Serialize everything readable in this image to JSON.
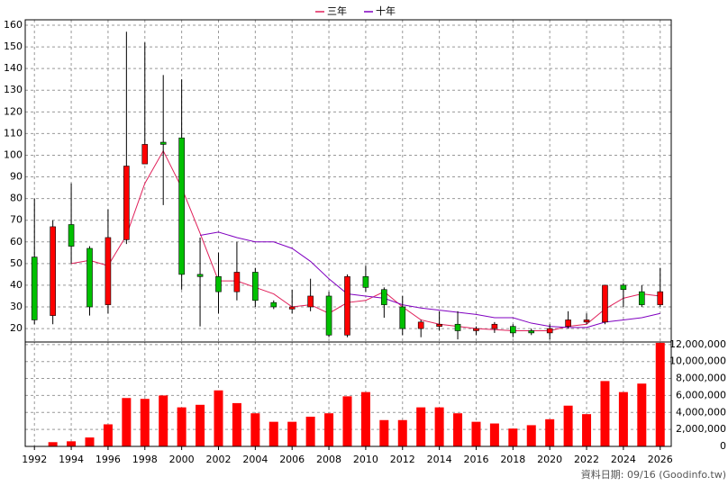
{
  "chart_data": [
    {
      "type": "candlestick",
      "legend": "top",
      "x": [
        1992,
        1993,
        1994,
        1995,
        1996,
        1997,
        1998,
        1999,
        2000,
        2001,
        2002,
        2003,
        2004,
        2005,
        2006,
        2007,
        2008,
        2009,
        2010,
        2011,
        2012,
        2013,
        2014,
        2015,
        2016,
        2017,
        2018,
        2019,
        2020,
        2021,
        2022,
        2023,
        2024,
        2025,
        2026
      ],
      "open": [
        53,
        26,
        68,
        57,
        31,
        61,
        96,
        106,
        108,
        45,
        44,
        37,
        46,
        32,
        29,
        30,
        35,
        17,
        44,
        38,
        30,
        20,
        21,
        22,
        19,
        20,
        21,
        19,
        18,
        21,
        23,
        23,
        40,
        37,
        31
      ],
      "high": [
        80,
        70,
        87,
        58,
        75,
        157,
        152,
        137,
        135,
        62,
        55,
        60,
        48,
        33,
        38,
        43,
        37,
        45,
        49,
        39,
        35,
        24,
        28,
        28,
        21,
        23,
        22,
        20,
        22,
        28,
        27,
        40,
        41,
        40,
        48
      ],
      "low": [
        22,
        22,
        50,
        26,
        27,
        59,
        96,
        77,
        38,
        21,
        27,
        33,
        30,
        29,
        27,
        28,
        16,
        16,
        37,
        25,
        17,
        16,
        19,
        15,
        17,
        18,
        16,
        17,
        15,
        20,
        22,
        22,
        30,
        30,
        30
      ],
      "close": [
        24,
        67,
        58,
        30,
        62,
        95,
        105,
        105,
        45,
        44,
        37,
        46,
        33,
        30,
        30,
        35,
        17,
        44,
        39,
        31,
        20,
        23,
        22,
        19,
        20,
        22,
        18,
        18,
        20,
        24,
        24,
        40,
        38,
        31,
        37
      ],
      "up_color": "#ff0000",
      "down_color": "#00c000",
      "series": [
        {
          "name": "三年",
          "color": "#e0205a",
          "values": [
            null,
            null,
            50,
            51.5,
            49,
            63,
            87,
            102,
            85,
            64,
            42,
            42,
            39,
            36,
            30,
            31,
            27,
            32,
            33,
            37,
            30,
            24,
            22,
            21,
            20,
            19.5,
            19,
            19,
            19,
            21,
            22,
            29,
            34,
            36,
            35
          ]
        },
        {
          "name": "十年",
          "color": "#8000c0",
          "values": [
            null,
            null,
            null,
            null,
            null,
            null,
            null,
            null,
            null,
            63,
            64.5,
            62,
            60,
            60,
            57,
            51,
            43,
            36,
            35,
            34,
            31,
            29.5,
            28.5,
            27.5,
            26.5,
            25,
            25,
            22.5,
            21,
            20.5,
            20.5,
            23,
            24,
            25,
            27
          ]
        }
      ],
      "xlim": [
        1991.5,
        2026.6
      ],
      "ylim": [
        13.8,
        162.5
      ],
      "yticks": [
        20,
        30,
        40,
        50,
        60,
        70,
        80,
        90,
        100,
        110,
        120,
        130,
        140,
        150,
        160
      ],
      "grid": true
    },
    {
      "type": "bar",
      "x": [
        1992,
        1993,
        1994,
        1995,
        1996,
        1997,
        1998,
        1999,
        2000,
        2001,
        2002,
        2003,
        2004,
        2005,
        2006,
        2007,
        2008,
        2009,
        2010,
        2011,
        2012,
        2013,
        2014,
        2015,
        2016,
        2017,
        2018,
        2019,
        2020,
        2021,
        2022,
        2023,
        2024,
        2025,
        2026
      ],
      "values": [
        50000,
        500000,
        600000,
        1050000,
        2600000,
        5700000,
        5600000,
        6000000,
        4600000,
        4900000,
        6600000,
        5100000,
        3900000,
        2900000,
        2900000,
        3500000,
        3900000,
        5900000,
        6400000,
        3100000,
        3100000,
        4600000,
        4600000,
        3900000,
        2900000,
        2700000,
        2100000,
        2500000,
        3200000,
        4800000,
        3800000,
        7700000,
        6400000,
        7400000,
        12200000
      ],
      "color": "#ff0000",
      "xlim": [
        1991.5,
        2026.6
      ],
      "xticks": [
        1992,
        1994,
        1996,
        1998,
        2000,
        2002,
        2004,
        2006,
        2008,
        2010,
        2012,
        2014,
        2016,
        2018,
        2020,
        2022,
        2024,
        2026
      ],
      "ylim": [
        0,
        12300000
      ],
      "yticks": [
        0,
        {
          "value": 2000000,
          "label": "2,000,000"
        },
        {
          "value": 4000000,
          "label": "4,000,000"
        },
        {
          "value": 6000000,
          "label": "6,000,000"
        },
        {
          "value": 8000000,
          "label": "8,000,000"
        },
        {
          "value": 10000000,
          "label": "10,000,000"
        },
        {
          "value": 12000000,
          "label": "12,000,000"
        }
      ],
      "annotation": "資料日期: 09/16 (Goodinfo.tw)",
      "grid": true
    }
  ]
}
